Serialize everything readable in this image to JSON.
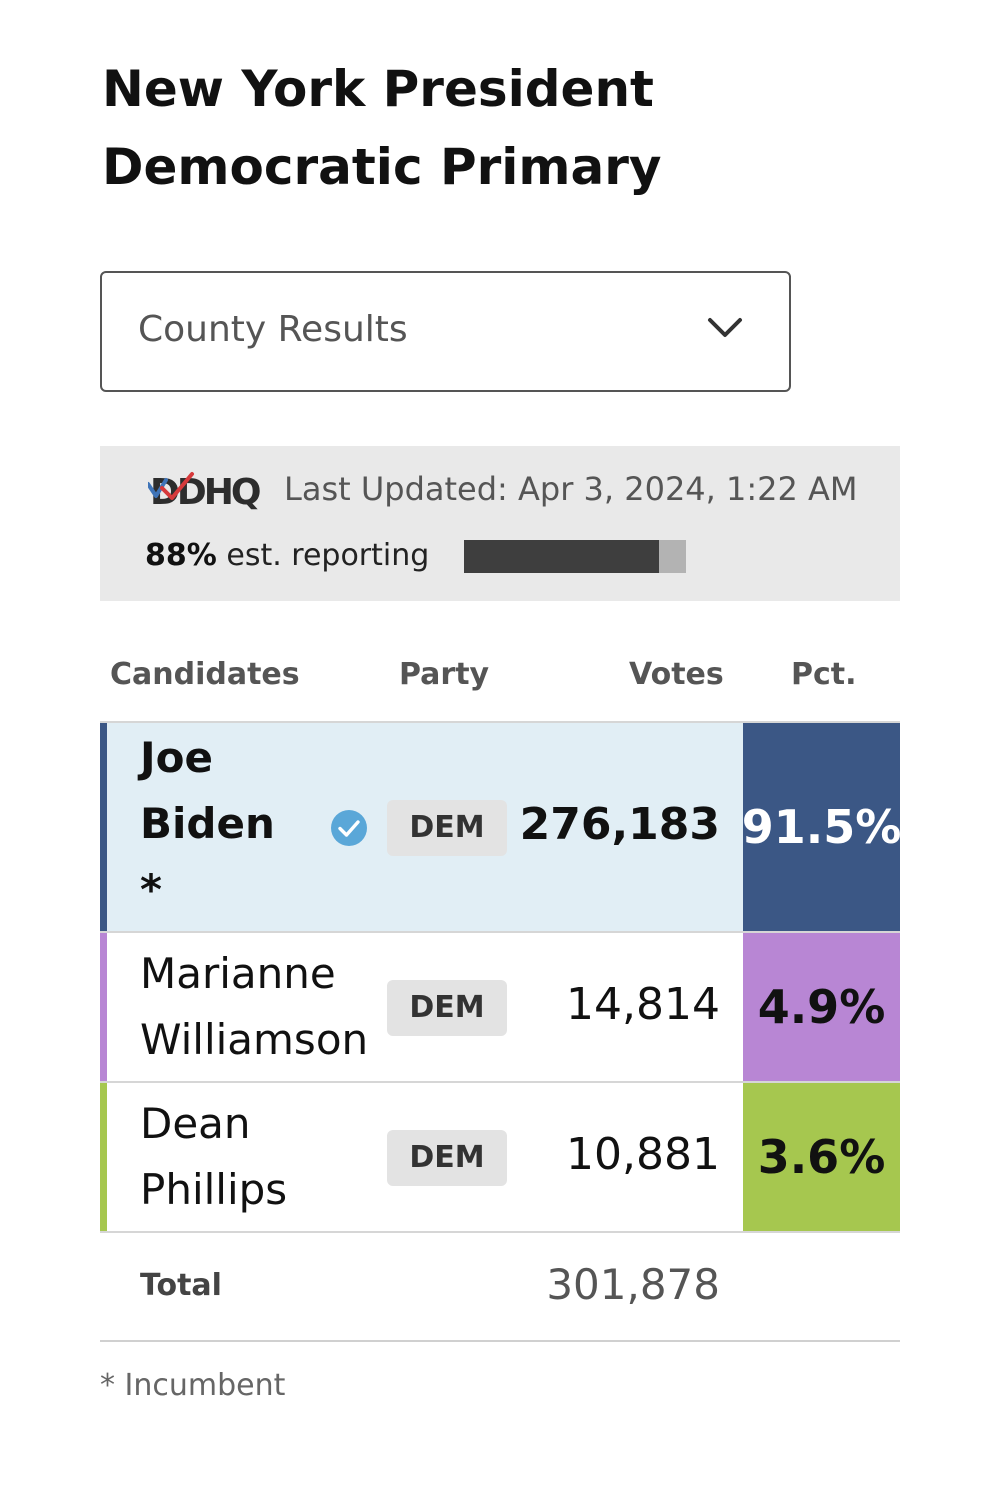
{
  "header": {
    "title_line1": "New York President",
    "title_line2": "Democratic Primary"
  },
  "view_select": {
    "selected": "County Results"
  },
  "status": {
    "source_logo": "DDHQ",
    "last_updated": "Last Updated: Apr 3, 2024, 1:22 AM",
    "reporting_pct_label": "88%",
    "reporting_text": "est. reporting",
    "reporting_fraction": 0.88
  },
  "table": {
    "headers": {
      "candidates": "Candidates",
      "party": "Party",
      "votes": "Votes",
      "pct": "Pct."
    },
    "rows": [
      {
        "name_lines": [
          "Joe",
          "Biden",
          "*"
        ],
        "party": "DEM",
        "votes": "276,183",
        "pct": "91.5%",
        "winner": true,
        "accent_color": "#3b5785",
        "pct_bg": "#3b5785",
        "pct_color": "#ffffff",
        "row_bg": "#e1eef5"
      },
      {
        "name_lines": [
          "Marianne",
          "Williamson"
        ],
        "party": "DEM",
        "votes": "14,814",
        "pct": "4.9%",
        "winner": false,
        "accent_color": "#b886d4",
        "pct_bg": "#b886d4",
        "pct_color": "#111111",
        "row_bg": "#ffffff"
      },
      {
        "name_lines": [
          "Dean",
          "Phillips"
        ],
        "party": "DEM",
        "votes": "10,881",
        "pct": "3.6%",
        "winner": false,
        "accent_color": "#a6c74f",
        "pct_bg": "#a6c74f",
        "pct_color": "#111111",
        "row_bg": "#ffffff"
      }
    ],
    "total_label": "Total",
    "total_votes": "301,878"
  },
  "footnote": "* Incumbent",
  "colors": {
    "winner_check": "#5aa7d8"
  }
}
